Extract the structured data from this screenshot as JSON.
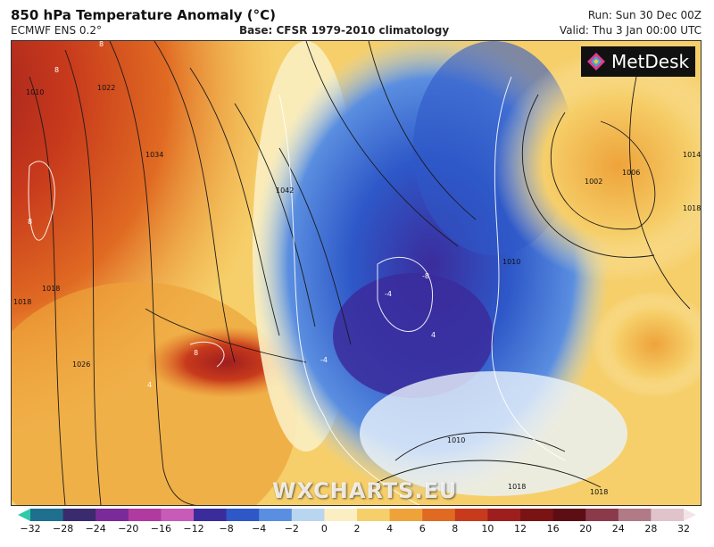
{
  "header": {
    "title": "850 hPa Temperature Anomaly (°C)",
    "model": "ECMWF ENS 0.2°",
    "base": "Base: CFSR 1979-2010 climatology",
    "run": "Run: Sun 30 Dec 00Z",
    "valid": "Valid: Thu 3 Jan 00:00 UTC"
  },
  "logo": {
    "text": "MetDesk"
  },
  "watermark": "WXCHARTS.EU",
  "isobar_labels": [
    "1010",
    "1022",
    "1034",
    "1018",
    "1026",
    "1018",
    "1042",
    "1002",
    "1006",
    "1014",
    "1018",
    "1010",
    "1010",
    "1018",
    "1018"
  ],
  "anomaly_labels": [
    "8",
    "8",
    "8",
    "-8",
    "-4",
    "4",
    "-4",
    "4",
    "8"
  ],
  "colorbar": {
    "ticks": [
      "−32",
      "−28",
      "−24",
      "−20",
      "−16",
      "−12",
      "−8",
      "−4",
      "−2",
      "0",
      "2",
      "4",
      "6",
      "8",
      "10",
      "12",
      "16",
      "20",
      "24",
      "28",
      "32"
    ],
    "colors": [
      "#2ec9a8",
      "#1f6f8f",
      "#3a2a6e",
      "#7a2a9a",
      "#b03aa0",
      "#c85ab8",
      "#3b2c9c",
      "#2e58c8",
      "#5a8ee0",
      "#b9d6f0",
      "#fbeec2",
      "#f6cf6a",
      "#eea33a",
      "#e06a22",
      "#c83a1c",
      "#9e1e1e",
      "#7a1414",
      "#5c0e14",
      "#8a3a4a",
      "#b07a86",
      "#e0c4cc",
      "#f4e4e8"
    ]
  }
}
